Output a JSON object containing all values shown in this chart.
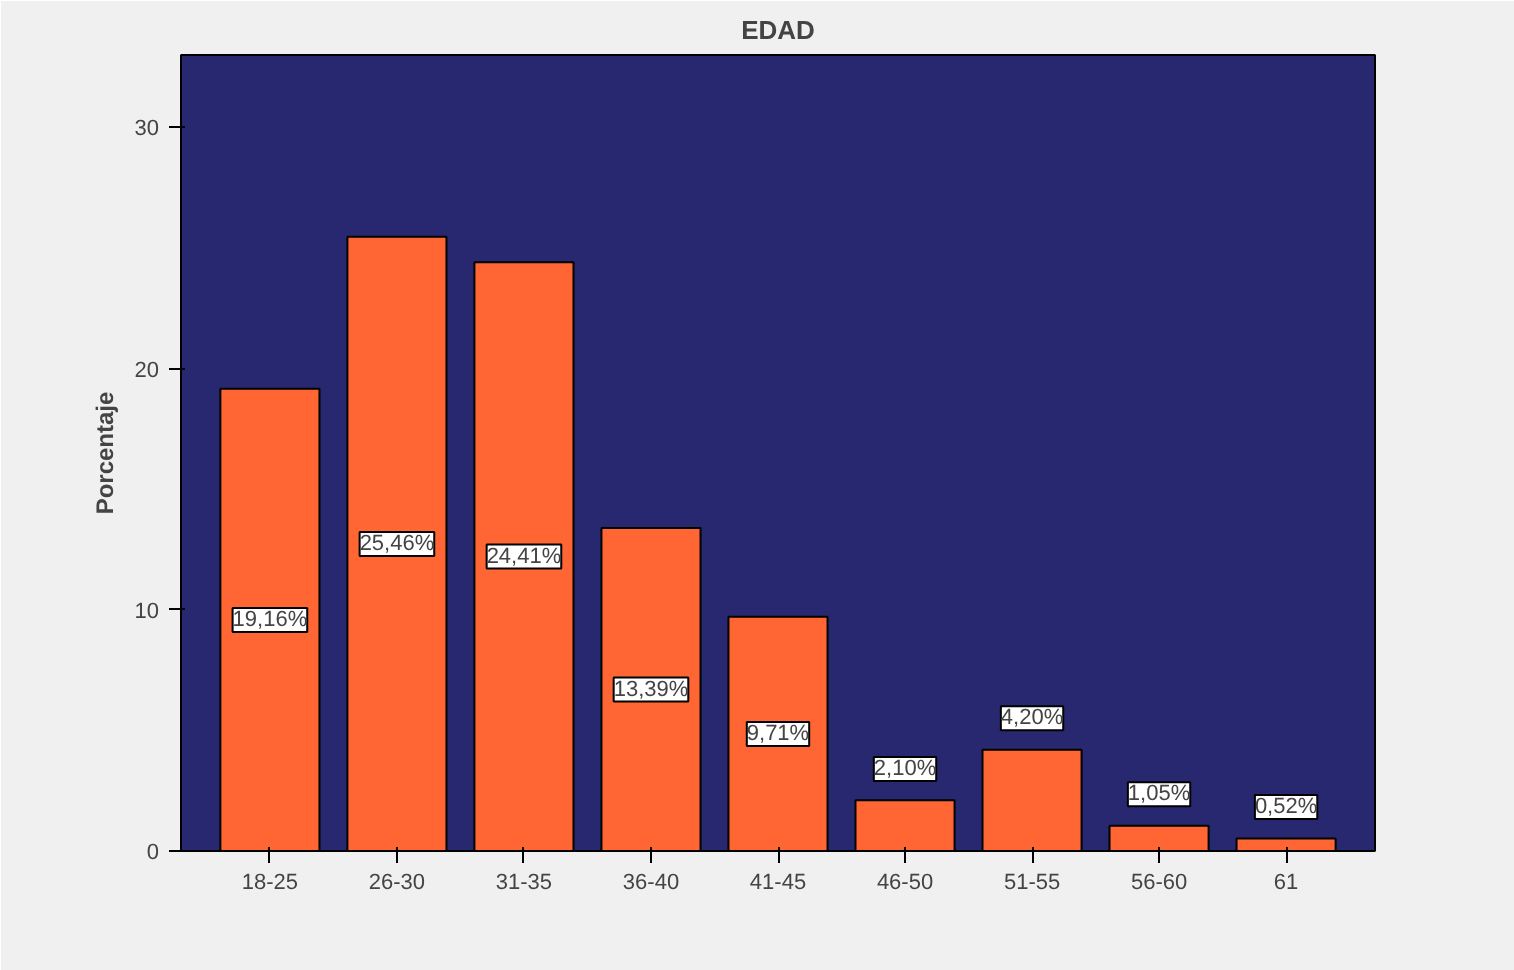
{
  "chart_data": {
    "type": "bar",
    "title": "EDAD",
    "ylabel": "Porcentaje",
    "categories": [
      "18-25",
      "26-30",
      "31-35",
      "36-40",
      "41-45",
      "46-50",
      "51-55",
      "56-60",
      "61"
    ],
    "values": [
      19.16,
      25.46,
      24.41,
      13.39,
      9.71,
      2.1,
      4.2,
      1.05,
      0.52
    ],
    "value_labels": [
      "19,16%",
      "25,46%",
      "24,41%",
      "13,39%",
      "9,71%",
      "2,10%",
      "4,20%",
      "1,05%",
      "0,52%"
    ],
    "color": "#ff6633",
    "ylim": [
      0,
      33
    ],
    "yticks": [
      0,
      10,
      20,
      30
    ],
    "grid": false
  }
}
